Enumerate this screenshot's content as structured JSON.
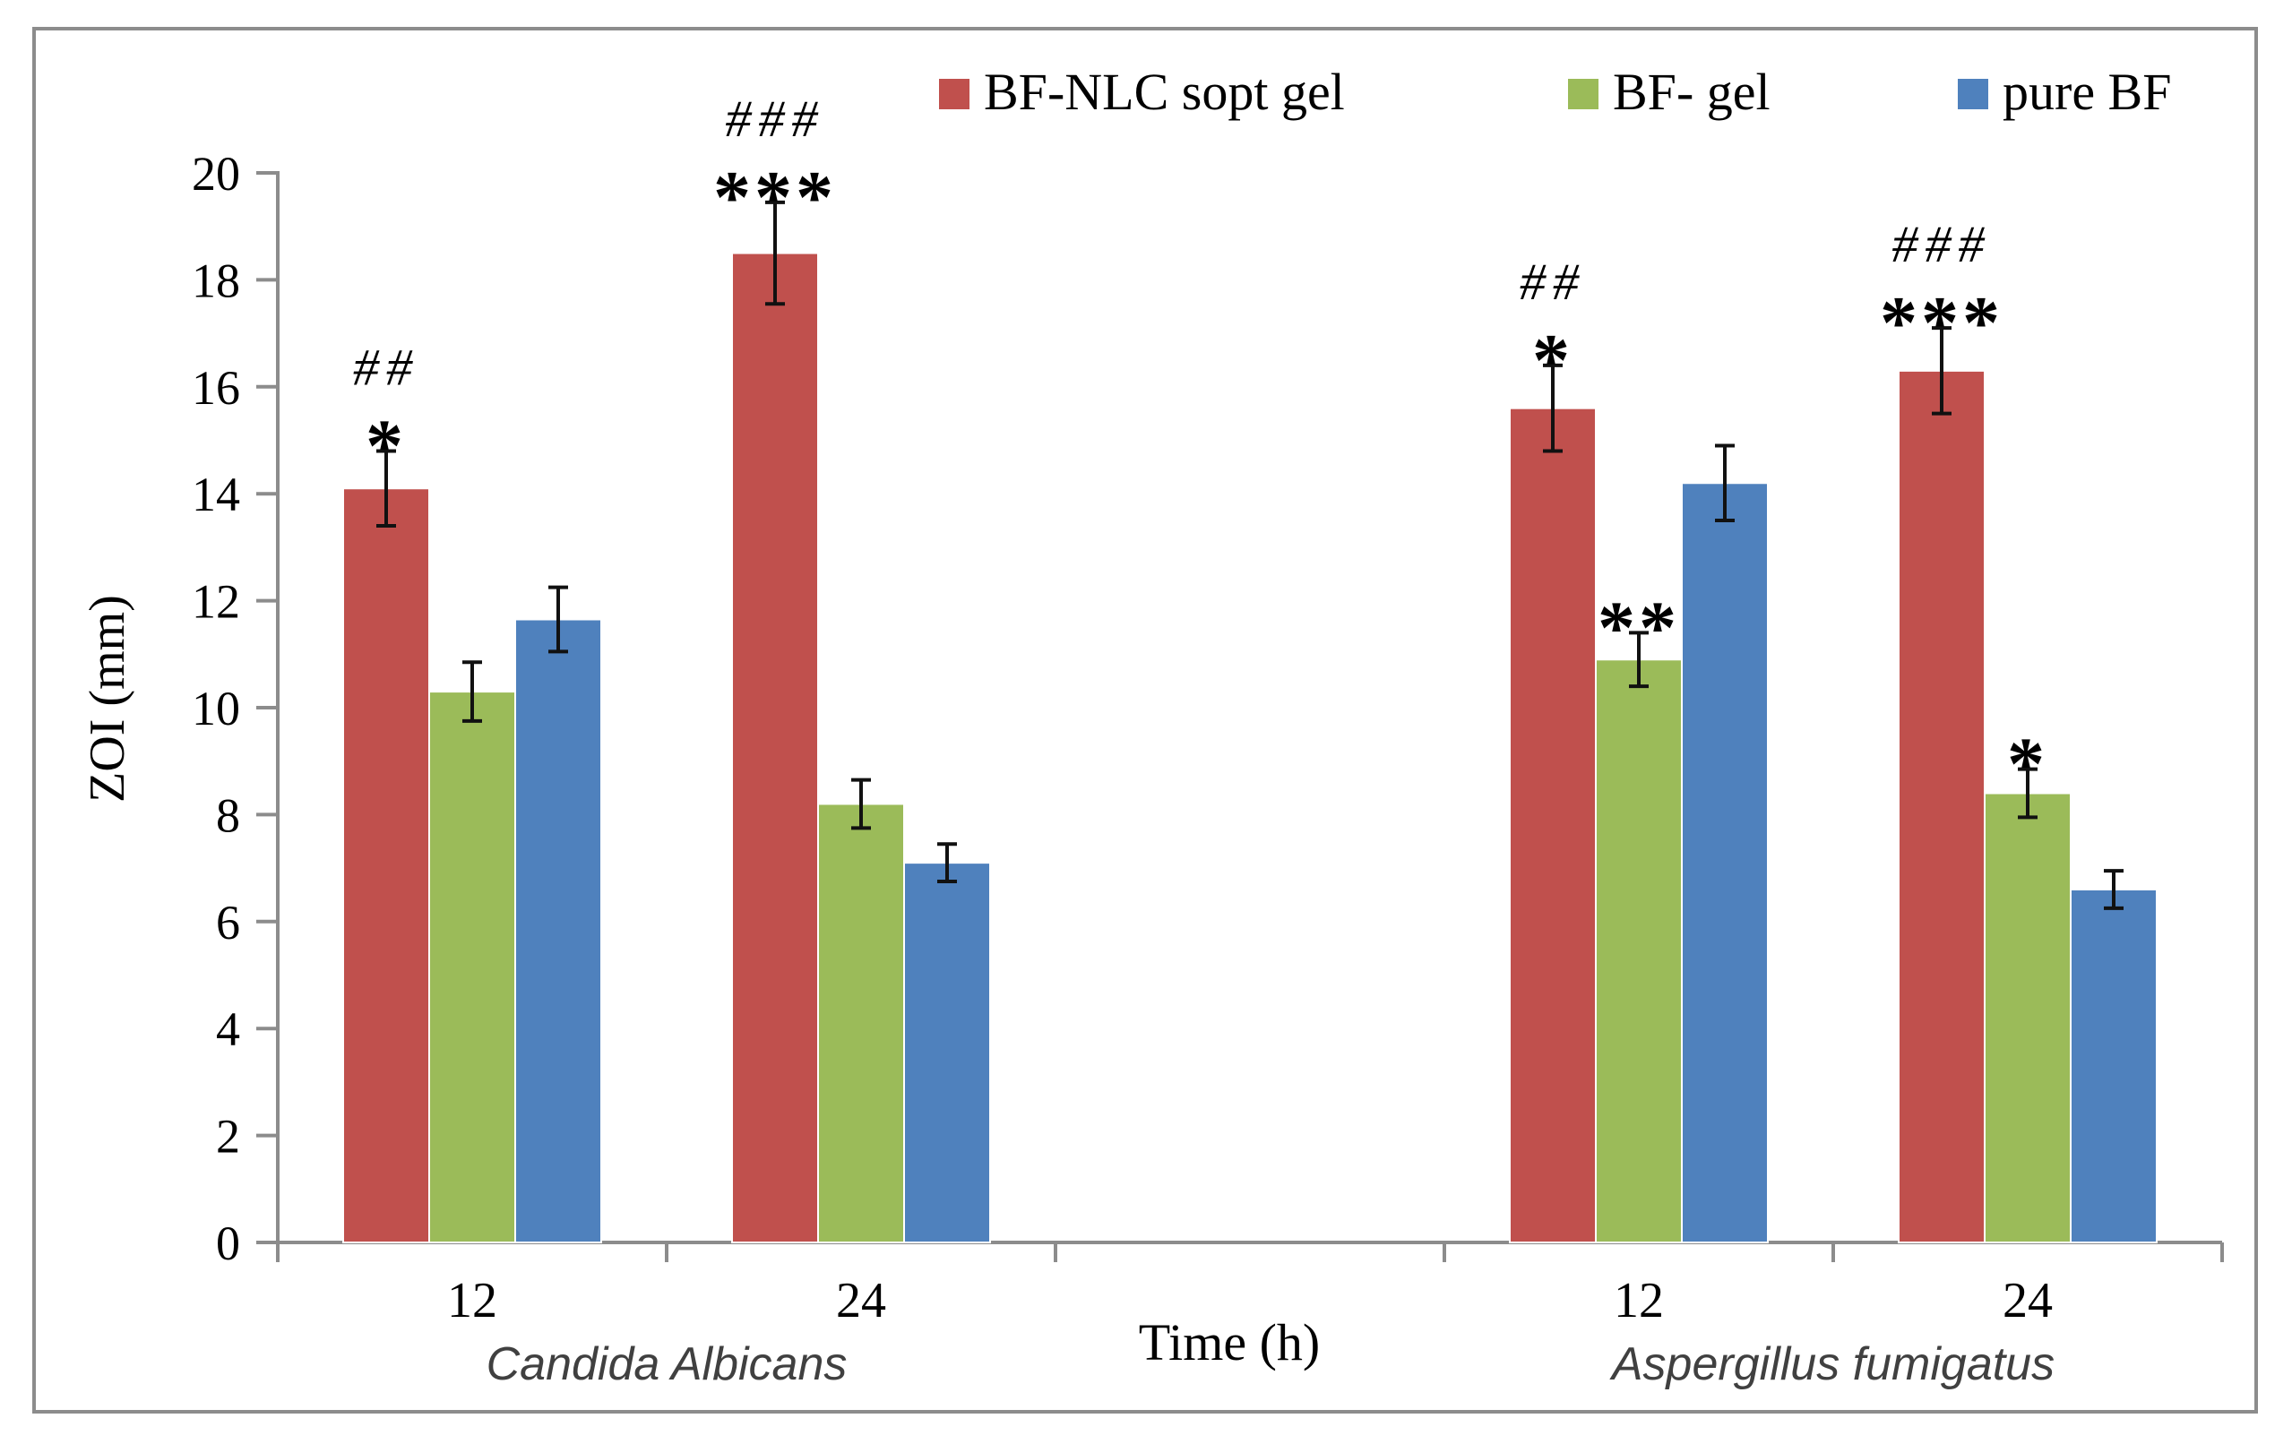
{
  "chart_data": {
    "type": "bar",
    "title": "",
    "xlabel": "Time (h)",
    "ylabel": "ZOI (mm)",
    "ylim": [
      0,
      20
    ],
    "yticks": [
      "0",
      "2",
      "4",
      "6",
      "8",
      "10",
      "12",
      "14",
      "16",
      "18",
      "20"
    ],
    "categories": [
      "12",
      "24",
      "",
      "12",
      "24"
    ],
    "group_labels": [
      {
        "text": "Candida Albicans",
        "categories": [
          "12",
          "24"
        ]
      },
      {
        "text": "Aspergillus fumigatus",
        "categories": [
          "12",
          "24"
        ]
      }
    ],
    "series": [
      {
        "name": "BF-NLC sopt gel",
        "color": "#c0504d",
        "values": [
          14.1,
          18.5,
          null,
          15.6,
          16.3
        ],
        "errors": [
          0.7,
          0.95,
          null,
          0.8,
          0.8
        ],
        "annotations": [
          [
            "##",
            "*"
          ],
          [
            "###",
            "***"
          ],
          null,
          [
            "##",
            "*"
          ],
          [
            "###",
            "***"
          ]
        ]
      },
      {
        "name": "BF- gel",
        "color": "#9bbb59",
        "values": [
          10.3,
          8.2,
          null,
          10.9,
          8.4
        ],
        "errors": [
          0.55,
          0.45,
          null,
          0.5,
          0.45
        ],
        "annotations": [
          null,
          null,
          null,
          [
            "**"
          ],
          [
            "*"
          ]
        ]
      },
      {
        "name": "pure BF",
        "color": "#4f81bd",
        "values": [
          11.65,
          7.1,
          null,
          14.2,
          6.6
        ],
        "errors": [
          0.6,
          0.35,
          null,
          0.7,
          0.35
        ],
        "annotations": [
          null,
          null,
          null,
          null,
          null
        ]
      }
    ],
    "legend": [
      "BF-NLC sopt gel",
      "BF- gel",
      "pure BF"
    ],
    "legend_position": "top-right",
    "grid": false
  }
}
